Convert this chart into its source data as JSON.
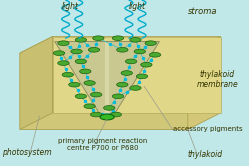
{
  "bg_sky": "#c0e8e8",
  "bg_membrane_top": "#e8dfa0",
  "bg_membrane_inner": "#e8e4b0",
  "bg_side_left": "#c8c070",
  "bg_side_right": "#d4c878",
  "bg_right_panel": "#d8c870",
  "stroma_label": "stroma",
  "thylakoid_membrane_label": "thylakoid\nmembrane",
  "thylakoid_label": "thylakoid",
  "photosystem_label": "photosystem",
  "primary_label": "primary pigment reaction\ncentre P700 or P680",
  "accessory_label": "accessory pigments",
  "light_label": "light",
  "pigment_color": "#4aaa30",
  "pigment_edge": "#1a6010",
  "reaction_center_color": "#228820",
  "arrow_color": "#00bbdd",
  "cone_fill": "#c8c890",
  "cone_edge": "#909060",
  "cone_highlight": "#e0e0b0",
  "light_wave_color": "#00aacc",
  "text_color": "#333300",
  "line_color": "#999988"
}
